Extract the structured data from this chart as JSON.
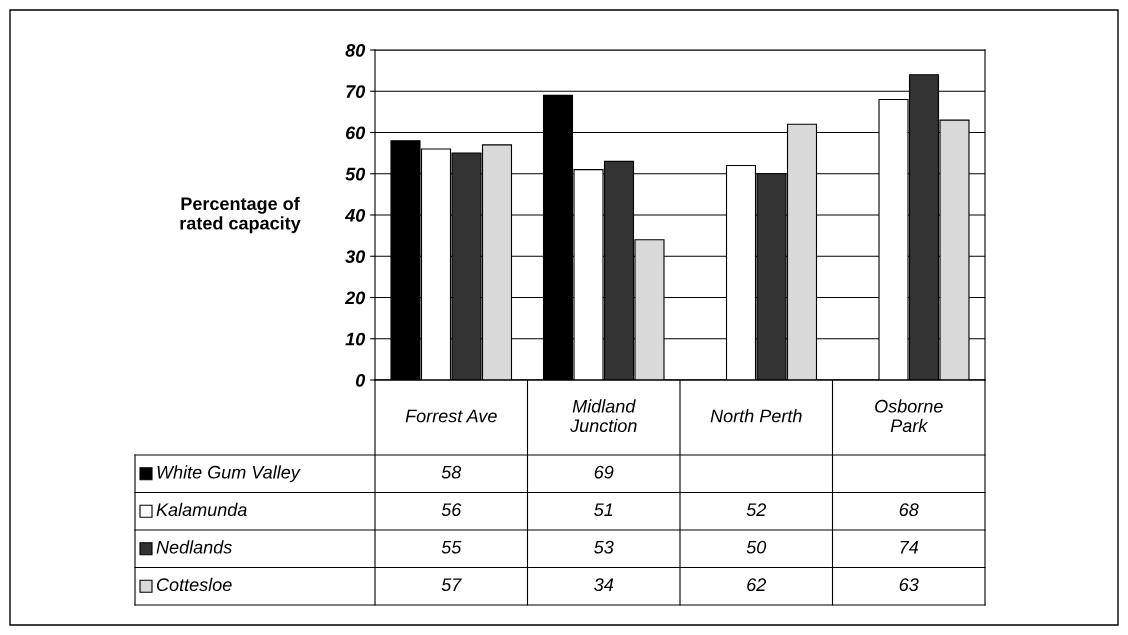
{
  "chart_data": {
    "type": "bar",
    "ylabel": "Percentage of\nrated capacity",
    "categories": [
      "Forrest Ave",
      "Midland\nJunction",
      "North Perth",
      "Osborne\nPark"
    ],
    "series": [
      {
        "name": "White Gum Valley",
        "color": "#000000",
        "values": [
          58,
          69,
          null,
          null
        ]
      },
      {
        "name": "Kalamunda",
        "color": "#ffffff",
        "values": [
          56,
          51,
          52,
          68
        ]
      },
      {
        "name": "Nedlands",
        "color": "#333333",
        "values": [
          55,
          53,
          50,
          74
        ]
      },
      {
        "name": "Cottesloe",
        "color": "#d9d9d9",
        "values": [
          57,
          34,
          62,
          63
        ]
      }
    ],
    "ylim": [
      0,
      80
    ],
    "yticks": [
      0,
      10,
      20,
      30,
      40,
      50,
      60,
      70,
      80
    ],
    "grid": "y",
    "data_labels": true,
    "legend": "bottom"
  }
}
